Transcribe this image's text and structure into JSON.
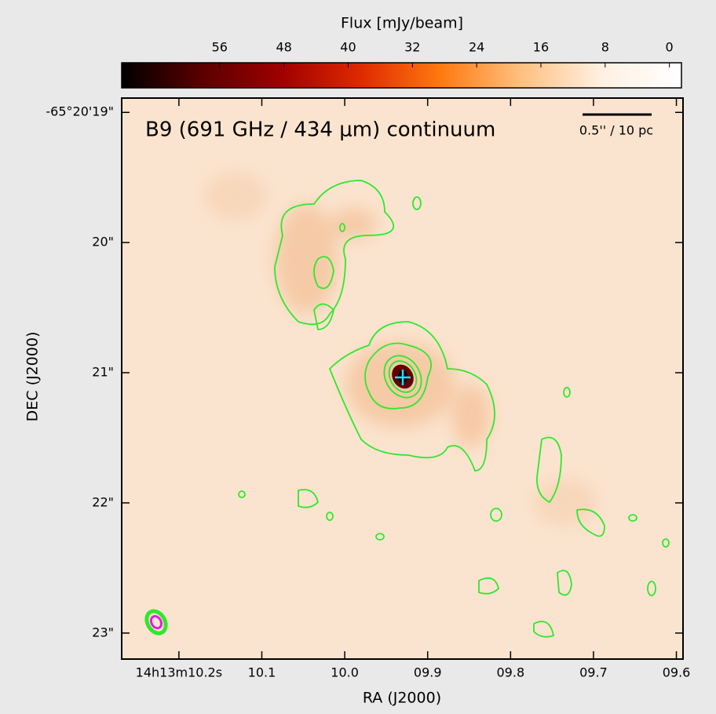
{
  "chart_data": {
    "type": "image",
    "title": "B9 (691 GHz / 434 μm) continuum",
    "scale_bar": "0.5'' / 10 pc",
    "x_label": "RA (J2000)",
    "y_label": "DEC (J2000)",
    "colorbar_label": "Flux [mJy/beam]",
    "clim": [
      68.2,
      -1.5
    ],
    "cticks": [
      56,
      48,
      40,
      32,
      24,
      16,
      8,
      0
    ],
    "colormap": [
      "#000000",
      "#5a0000",
      "#a00000",
      "#e02a00",
      "#ff7a10",
      "#ffc080",
      "#fff0e2",
      "#ffffff"
    ],
    "xlim": [
      10.269,
      9.592
    ],
    "xticks": [
      {
        "value": 10.2,
        "label": "14h13m10.2s"
      },
      {
        "value": 10.1,
        "label": "10.1"
      },
      {
        "value": 10.0,
        "label": "10.0"
      },
      {
        "value": 9.9,
        "label": "09.9"
      },
      {
        "value": 9.8,
        "label": "09.8"
      },
      {
        "value": 9.7,
        "label": "09.7"
      },
      {
        "value": 9.6,
        "label": "09.6"
      }
    ],
    "ylim": [
      18.89,
      23.2
    ],
    "yticks": [
      {
        "value": 19,
        "label": "-65°20'19\""
      },
      {
        "value": 20,
        "label": "20\""
      },
      {
        "value": 21,
        "label": "21\""
      },
      {
        "value": 22,
        "label": "22\""
      },
      {
        "value": 23,
        "label": "23\""
      }
    ]
  }
}
